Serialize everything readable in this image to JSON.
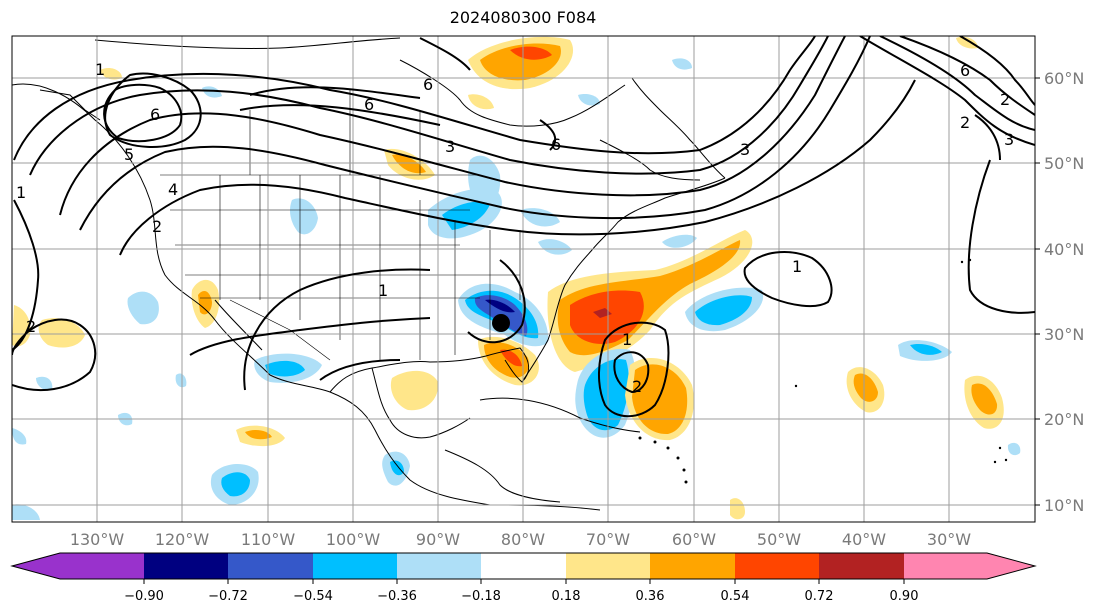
{
  "title": "2024080300 F084",
  "map": {
    "lat_labels": [
      "60°N",
      "50°N",
      "40°N",
      "30°N",
      "20°N",
      "10°N"
    ],
    "lon_labels": [
      "130°W",
      "120°W",
      "110°W",
      "100°W",
      "90°W",
      "80°W",
      "70°W",
      "60°W",
      "50°W",
      "40°W",
      "30°W"
    ],
    "contour_labels": [
      "6",
      "6",
      "6",
      "6",
      "5",
      "4",
      "3",
      "3",
      "2",
      "2",
      "2",
      "1",
      "1",
      "1",
      "1",
      "2",
      "1",
      "6",
      "3",
      "2"
    ],
    "colorbar": {
      "ticks": [
        "−0.90",
        "−0.72",
        "−0.54",
        "−0.36",
        "−0.18",
        "0.18",
        "0.36",
        "0.54",
        "0.72",
        "0.90"
      ],
      "colors": [
        "#9932cc",
        "#000080",
        "#3558c9",
        "#00bfff",
        "#aedff7",
        "#ffffff",
        "#ffe68a",
        "#ffa500",
        "#ff4500",
        "#b22222",
        "#ff85b0"
      ]
    },
    "marker": "storm-center-dot"
  }
}
